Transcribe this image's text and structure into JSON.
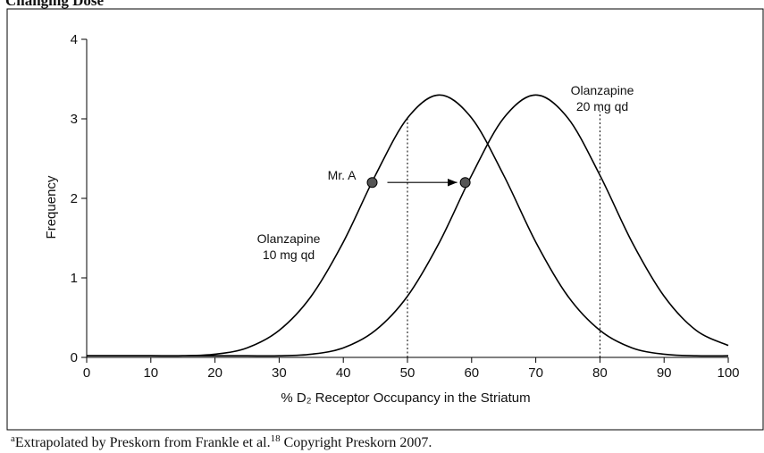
{
  "heading": "Changing Dose",
  "chart_data": {
    "type": "line",
    "xlabel": "% D₂ Receptor Occupancy in the Striatum",
    "ylabel": "Frequency",
    "x": [
      0,
      5,
      10,
      15,
      20,
      25,
      30,
      35,
      40,
      45,
      50,
      55,
      60,
      65,
      70,
      75,
      80,
      85,
      90,
      95,
      100
    ],
    "series": [
      {
        "name": "Olanzapine 10 mg qd",
        "color": "#000000",
        "values": [
          0.02,
          0.02,
          0.02,
          0.02,
          0.04,
          0.12,
          0.34,
          0.77,
          1.45,
          2.29,
          3.01,
          3.3,
          3.01,
          2.29,
          1.45,
          0.77,
          0.34,
          0.12,
          0.04,
          0.02,
          0.02
        ]
      },
      {
        "name": "Olanzapine 20 mg qd",
        "color": "#000000",
        "values": [
          0.02,
          0.02,
          0.02,
          0.02,
          0.02,
          0.02,
          0.02,
          0.04,
          0.12,
          0.34,
          0.77,
          1.45,
          2.29,
          3.01,
          3.3,
          3.01,
          2.29,
          1.45,
          0.77,
          0.34,
          0.15
        ]
      }
    ],
    "labels": [
      [
        "Olanzapine",
        "10 mg qd"
      ],
      [
        "Olanzapine",
        "20 mg qd"
      ]
    ],
    "vlines": [
      {
        "x": 50,
        "y": 3.0
      },
      {
        "x": 80,
        "y": 3.1
      }
    ],
    "points": [
      {
        "x": 44.5,
        "y": 2.2
      },
      {
        "x": 59,
        "y": 2.2
      }
    ],
    "point_label": "Mr. A",
    "xlim": [
      0,
      100
    ],
    "xticks": [
      0,
      10,
      20,
      30,
      40,
      50,
      60,
      70,
      80,
      90,
      100
    ],
    "ylim": [
      0,
      4
    ],
    "yticks": [
      0,
      1,
      2,
      3,
      4
    ]
  },
  "footnote": {
    "marker": "a",
    "text": "Extrapolated by Preskorn from Frankle et al.",
    "ref": "18",
    "rest": " Copyright Preskorn 2007."
  }
}
